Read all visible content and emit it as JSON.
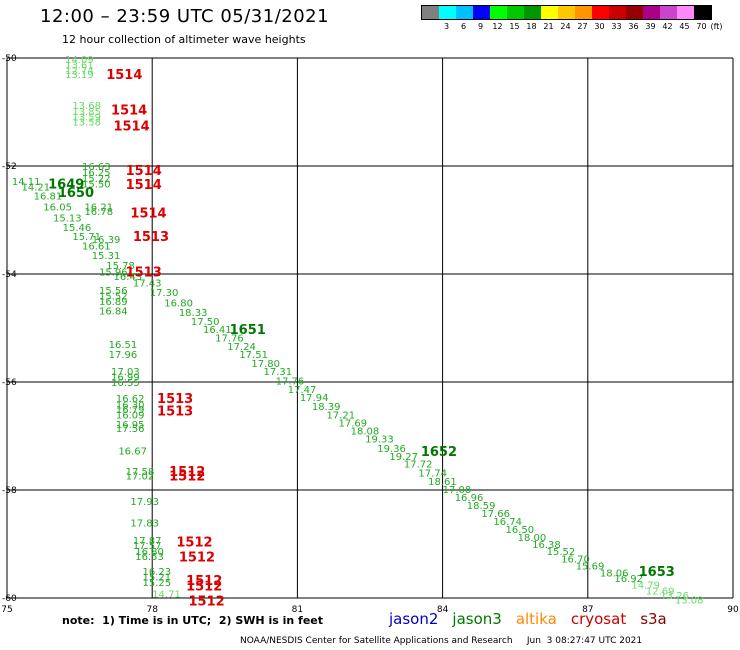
{
  "header": {
    "title": "12:00 – 23:59 UTC 05/31/2021",
    "subtitle": "12 hour collection of altimeter wave heights"
  },
  "legend": {
    "unit": "(ft)",
    "bins": [
      {
        "label": "",
        "color": "#808080"
      },
      {
        "label": "3",
        "color": "#00ffff"
      },
      {
        "label": "6",
        "color": "#00c0ff"
      },
      {
        "label": "9",
        "color": "#0000ff"
      },
      {
        "label": "12",
        "color": "#00ff00"
      },
      {
        "label": "15",
        "color": "#00c800"
      },
      {
        "label": "18",
        "color": "#009600"
      },
      {
        "label": "21",
        "color": "#ffff00"
      },
      {
        "label": "24",
        "color": "#ffc800"
      },
      {
        "label": "27",
        "color": "#ff9600"
      },
      {
        "label": "30",
        "color": "#ff0000"
      },
      {
        "label": "33",
        "color": "#c80000"
      },
      {
        "label": "36",
        "color": "#960000"
      },
      {
        "label": "39",
        "color": "#aa0088"
      },
      {
        "label": "42",
        "color": "#cc44cc"
      },
      {
        "label": "45",
        "color": "#ff88ff"
      },
      {
        "label": "70",
        "color": "#000000"
      }
    ]
  },
  "map": {
    "lon_range": [
      75,
      90
    ],
    "lat_range": [
      -60,
      -50
    ],
    "x_ticks": [
      "75",
      "78",
      "81",
      "84",
      "87",
      "90"
    ],
    "y_ticks": [
      "-50",
      "-52",
      "-54",
      "-56",
      "-58",
      "-60"
    ]
  },
  "colors": {
    "swh_light": "#66dd66",
    "swh_mid": "#22aa22",
    "time_jason3": "#007700",
    "time_red": "#dd0000"
  },
  "swh_labels": [
    {
      "text": "14.09",
      "lon": 76.2,
      "lat": -50.02,
      "c": "light"
    },
    {
      "text": "13.61",
      "lon": 76.2,
      "lat": -50.12,
      "c": "light"
    },
    {
      "text": "12.74",
      "lon": 76.2,
      "lat": -50.22,
      "c": "light"
    },
    {
      "text": "13.19",
      "lon": 76.2,
      "lat": -50.3,
      "c": "light"
    },
    {
      "text": "13.68",
      "lon": 76.35,
      "lat": -50.87,
      "c": "light"
    },
    {
      "text": "13.85",
      "lon": 76.35,
      "lat": -50.98,
      "c": "light"
    },
    {
      "text": "13.59",
      "lon": 76.35,
      "lat": -51.08,
      "c": "light"
    },
    {
      "text": "13.58",
      "lon": 76.35,
      "lat": -51.18,
      "c": "light"
    },
    {
      "text": "16.63",
      "lon": 76.55,
      "lat": -52.0,
      "c": "mid"
    },
    {
      "text": "16.25",
      "lon": 76.55,
      "lat": -52.11,
      "c": "mid"
    },
    {
      "text": "15.22",
      "lon": 76.55,
      "lat": -52.22,
      "c": "mid"
    },
    {
      "text": "15.50",
      "lon": 76.55,
      "lat": -52.32,
      "c": "mid"
    },
    {
      "text": "14.11",
      "lon": 75.1,
      "lat": -52.28,
      "c": "mid"
    },
    {
      "text": "14.21",
      "lon": 75.3,
      "lat": -52.38,
      "c": "mid"
    },
    {
      "text": "16.81",
      "lon": 75.55,
      "lat": -52.55,
      "c": "mid"
    },
    {
      "text": "16.05",
      "lon": 75.75,
      "lat": -52.75,
      "c": "mid"
    },
    {
      "text": "16.21",
      "lon": 76.6,
      "lat": -52.75,
      "c": "mid"
    },
    {
      "text": "16.78",
      "lon": 76.6,
      "lat": -52.83,
      "c": "mid"
    },
    {
      "text": "15.13",
      "lon": 75.95,
      "lat": -52.95,
      "c": "mid"
    },
    {
      "text": "15.46",
      "lon": 76.15,
      "lat": -53.13,
      "c": "mid"
    },
    {
      "text": "15.71",
      "lon": 76.35,
      "lat": -53.3,
      "c": "mid"
    },
    {
      "text": "16.39",
      "lon": 76.75,
      "lat": -53.35,
      "c": "mid"
    },
    {
      "text": "16.61",
      "lon": 76.55,
      "lat": -53.47,
      "c": "mid"
    },
    {
      "text": "15.31",
      "lon": 76.75,
      "lat": -53.65,
      "c": "mid"
    },
    {
      "text": "15.78",
      "lon": 77.05,
      "lat": -53.83,
      "c": "mid"
    },
    {
      "text": "15.96",
      "lon": 76.9,
      "lat": -53.95,
      "c": "mid"
    },
    {
      "text": "16.43",
      "lon": 77.2,
      "lat": -54.04,
      "c": "mid"
    },
    {
      "text": "17.43",
      "lon": 77.6,
      "lat": -54.16,
      "c": "mid"
    },
    {
      "text": "15.56",
      "lon": 76.9,
      "lat": -54.3,
      "c": "mid"
    },
    {
      "text": "17.30",
      "lon": 77.95,
      "lat": -54.33,
      "c": "mid"
    },
    {
      "text": "15.52",
      "lon": 76.9,
      "lat": -54.4,
      "c": "mid"
    },
    {
      "text": "16.89",
      "lon": 76.9,
      "lat": -54.5,
      "c": "mid"
    },
    {
      "text": "16.80",
      "lon": 78.25,
      "lat": -54.53,
      "c": "mid"
    },
    {
      "text": "16.84",
      "lon": 76.9,
      "lat": -54.68,
      "c": "mid"
    },
    {
      "text": "18.33",
      "lon": 78.55,
      "lat": -54.7,
      "c": "mid"
    },
    {
      "text": "17.50",
      "lon": 78.8,
      "lat": -54.87,
      "c": "mid"
    },
    {
      "text": "16.41",
      "lon": 79.05,
      "lat": -55.02,
      "c": "mid"
    },
    {
      "text": "17.76",
      "lon": 79.3,
      "lat": -55.18,
      "c": "mid"
    },
    {
      "text": "16.51",
      "lon": 77.1,
      "lat": -55.3,
      "c": "mid"
    },
    {
      "text": "17.24",
      "lon": 79.55,
      "lat": -55.33,
      "c": "mid"
    },
    {
      "text": "17.96",
      "lon": 77.1,
      "lat": -55.48,
      "c": "mid"
    },
    {
      "text": "17.51",
      "lon": 79.8,
      "lat": -55.48,
      "c": "mid"
    },
    {
      "text": "17.80",
      "lon": 80.05,
      "lat": -55.65,
      "c": "mid"
    },
    {
      "text": "17.03",
      "lon": 77.15,
      "lat": -55.8,
      "c": "mid"
    },
    {
      "text": "17.31",
      "lon": 80.3,
      "lat": -55.8,
      "c": "mid"
    },
    {
      "text": "16.99",
      "lon": 77.15,
      "lat": -55.9,
      "c": "mid"
    },
    {
      "text": "16.55",
      "lon": 77.15,
      "lat": -56.0,
      "c": "mid"
    },
    {
      "text": "17.76",
      "lon": 80.55,
      "lat": -55.97,
      "c": "mid"
    },
    {
      "text": "17.47",
      "lon": 80.8,
      "lat": -56.13,
      "c": "mid"
    },
    {
      "text": "17.94",
      "lon": 81.05,
      "lat": -56.28,
      "c": "mid"
    },
    {
      "text": "16.62",
      "lon": 77.25,
      "lat": -56.3,
      "c": "mid"
    },
    {
      "text": "18.39",
      "lon": 81.3,
      "lat": -56.44,
      "c": "mid"
    },
    {
      "text": "16.30",
      "lon": 77.25,
      "lat": -56.42,
      "c": "mid"
    },
    {
      "text": "16.79",
      "lon": 77.25,
      "lat": -56.5,
      "c": "mid"
    },
    {
      "text": "17.21",
      "lon": 81.6,
      "lat": -56.6,
      "c": "mid"
    },
    {
      "text": "16.09",
      "lon": 77.25,
      "lat": -56.6,
      "c": "mid"
    },
    {
      "text": "17.69",
      "lon": 81.85,
      "lat": -56.75,
      "c": "mid"
    },
    {
      "text": "16.95",
      "lon": 77.25,
      "lat": -56.78,
      "c": "mid"
    },
    {
      "text": "17.56",
      "lon": 77.25,
      "lat": -56.85,
      "c": "mid"
    },
    {
      "text": "18.08",
      "lon": 82.1,
      "lat": -56.9,
      "c": "mid"
    },
    {
      "text": "19.33",
      "lon": 82.4,
      "lat": -57.05,
      "c": "mid"
    },
    {
      "text": "19.36",
      "lon": 82.65,
      "lat": -57.22,
      "c": "mid"
    },
    {
      "text": "16.67",
      "lon": 77.3,
      "lat": -57.27,
      "c": "mid"
    },
    {
      "text": "19.27",
      "lon": 82.9,
      "lat": -57.37,
      "c": "mid"
    },
    {
      "text": "17.72",
      "lon": 83.2,
      "lat": -57.51,
      "c": "mid"
    },
    {
      "text": "17.58",
      "lon": 77.45,
      "lat": -57.65,
      "c": "mid"
    },
    {
      "text": "17.74",
      "lon": 83.5,
      "lat": -57.68,
      "c": "mid"
    },
    {
      "text": "17.02",
      "lon": 77.45,
      "lat": -57.73,
      "c": "mid"
    },
    {
      "text": "18.61",
      "lon": 83.7,
      "lat": -57.83,
      "c": "mid"
    },
    {
      "text": "17.08",
      "lon": 84.0,
      "lat": -57.98,
      "c": "mid"
    },
    {
      "text": "16.96",
      "lon": 84.25,
      "lat": -58.13,
      "c": "mid"
    },
    {
      "text": "17.93",
      "lon": 77.55,
      "lat": -58.2,
      "c": "mid"
    },
    {
      "text": "18.59",
      "lon": 84.5,
      "lat": -58.28,
      "c": "mid"
    },
    {
      "text": "17.66",
      "lon": 84.8,
      "lat": -58.43,
      "c": "mid"
    },
    {
      "text": "16.74",
      "lon": 85.05,
      "lat": -58.57,
      "c": "mid"
    },
    {
      "text": "17.83",
      "lon": 77.55,
      "lat": -58.6,
      "c": "mid"
    },
    {
      "text": "16.50",
      "lon": 85.3,
      "lat": -58.72,
      "c": "mid"
    },
    {
      "text": "18.00",
      "lon": 85.55,
      "lat": -58.87,
      "c": "mid"
    },
    {
      "text": "17.87",
      "lon": 77.6,
      "lat": -58.93,
      "c": "mid"
    },
    {
      "text": "17.57",
      "lon": 77.6,
      "lat": -59.02,
      "c": "mid"
    },
    {
      "text": "16.38",
      "lon": 85.85,
      "lat": -59.0,
      "c": "mid"
    },
    {
      "text": "16.80",
      "lon": 77.65,
      "lat": -59.13,
      "c": "mid"
    },
    {
      "text": "15.52",
      "lon": 86.15,
      "lat": -59.13,
      "c": "mid"
    },
    {
      "text": "16.53",
      "lon": 77.65,
      "lat": -59.22,
      "c": "mid"
    },
    {
      "text": "16.70",
      "lon": 86.45,
      "lat": -59.27,
      "c": "mid"
    },
    {
      "text": "15.69",
      "lon": 86.75,
      "lat": -59.4,
      "c": "mid"
    },
    {
      "text": "16.23",
      "lon": 77.8,
      "lat": -59.5,
      "c": "mid"
    },
    {
      "text": "18.06",
      "lon": 87.25,
      "lat": -59.53,
      "c": "mid"
    },
    {
      "text": "15.21",
      "lon": 77.8,
      "lat": -59.6,
      "c": "mid"
    },
    {
      "text": "16.92",
      "lon": 87.55,
      "lat": -59.63,
      "c": "mid"
    },
    {
      "text": "15.25",
      "lon": 77.8,
      "lat": -59.7,
      "c": "mid"
    },
    {
      "text": "14.79",
      "lon": 87.9,
      "lat": -59.75,
      "c": "light"
    },
    {
      "text": "12.69",
      "lon": 88.2,
      "lat": -59.86,
      "c": "light"
    },
    {
      "text": "14.71",
      "lon": 78.0,
      "lat": -59.92,
      "c": "light"
    },
    {
      "text": "13.26",
      "lon": 88.5,
      "lat": -59.94,
      "c": "light"
    },
    {
      "text": "13.08",
      "lon": 88.8,
      "lat": -60.03,
      "c": "light"
    }
  ],
  "time_labels": [
    {
      "text": "1514",
      "lon": 77.05,
      "lat": -50.3,
      "c": "red"
    },
    {
      "text": "1514",
      "lon": 77.15,
      "lat": -50.95,
      "c": "red"
    },
    {
      "text": "1514",
      "lon": 77.2,
      "lat": -51.25,
      "c": "red"
    },
    {
      "text": "1514",
      "lon": 77.45,
      "lat": -52.07,
      "c": "red"
    },
    {
      "text": "1514",
      "lon": 77.45,
      "lat": -52.33,
      "c": "red"
    },
    {
      "text": "1649",
      "lon": 75.85,
      "lat": -52.32,
      "c": "jason3"
    },
    {
      "text": "1650",
      "lon": 76.05,
      "lat": -52.48,
      "c": "jason3"
    },
    {
      "text": "1514",
      "lon": 77.55,
      "lat": -52.86,
      "c": "red"
    },
    {
      "text": "1513",
      "lon": 77.6,
      "lat": -53.3,
      "c": "red"
    },
    {
      "text": "1513",
      "lon": 77.45,
      "lat": -53.95,
      "c": "red"
    },
    {
      "text": "1651",
      "lon": 79.6,
      "lat": -55.02,
      "c": "jason3"
    },
    {
      "text": "1513",
      "lon": 78.1,
      "lat": -56.3,
      "c": "red"
    },
    {
      "text": "1513",
      "lon": 78.1,
      "lat": -56.53,
      "c": "red"
    },
    {
      "text": "1652",
      "lon": 83.55,
      "lat": -57.28,
      "c": "jason3"
    },
    {
      "text": "1512",
      "lon": 78.35,
      "lat": -57.65,
      "c": "red"
    },
    {
      "text": "1512",
      "lon": 78.35,
      "lat": -57.73,
      "c": "red"
    },
    {
      "text": "1512",
      "lon": 78.5,
      "lat": -58.95,
      "c": "red"
    },
    {
      "text": "1512",
      "lon": 78.55,
      "lat": -59.23,
      "c": "red"
    },
    {
      "text": "1512",
      "lon": 78.7,
      "lat": -59.67,
      "c": "red"
    },
    {
      "text": "1512",
      "lon": 78.7,
      "lat": -59.77,
      "c": "red"
    },
    {
      "text": "1512",
      "lon": 78.75,
      "lat": -60.05,
      "c": "red"
    },
    {
      "text": "1653",
      "lon": 88.05,
      "lat": -59.5,
      "c": "jason3"
    }
  ],
  "footer": {
    "note": "note:  1) Time is in UTC;  2) SWH is in feet",
    "satellites": [
      {
        "name": "jason2",
        "color": "#0000cc"
      },
      {
        "name": "jason3",
        "color": "#007700"
      },
      {
        "name": "altika",
        "color": "#ff8800"
      },
      {
        "name": "cryosat",
        "color": "#cc0000"
      },
      {
        "name": "s3a",
        "color": "#880000"
      }
    ],
    "credit": "NOAA/NESDIS Center for Satellite Applications and Research     Jun  3 08:27:47 UTC 2021"
  }
}
